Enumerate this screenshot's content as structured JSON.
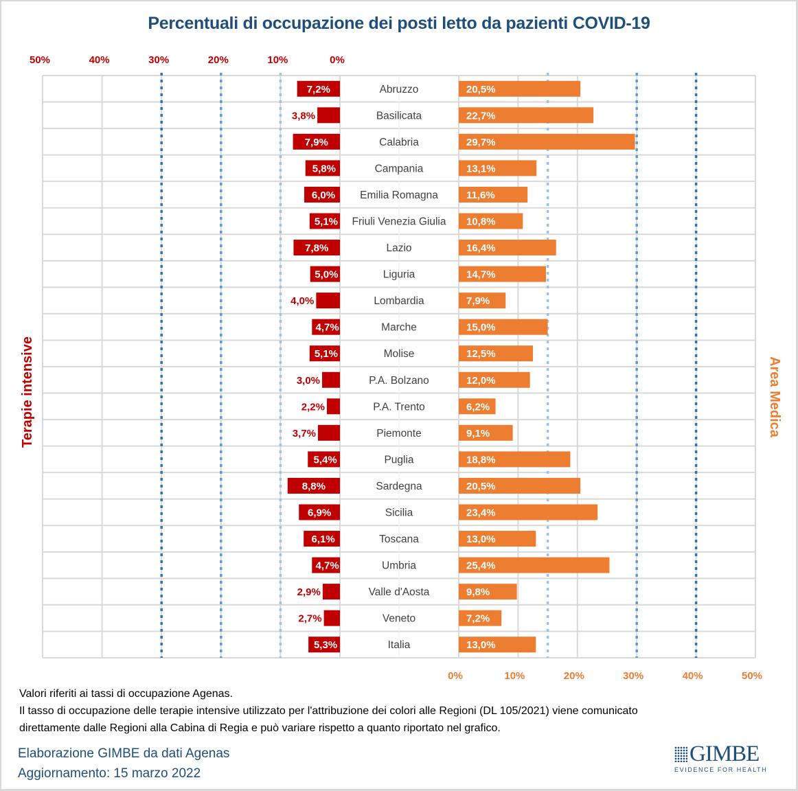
{
  "title": "Percentuali di occupazione dei posti letto da pazienti COVID-19",
  "left_axis_label": "Terapie intensive",
  "right_axis_label": "Area Medica",
  "notes": [
    "Valori riferiti ai tassi di occupazione Agenas.",
    "Il tasso di occupazione delle terapie intensive utilizzato per l'attribuzione dei colori alle Regioni (DL 105/2021) viene comunicato",
    "direttamente dalle Regioni alla Cabina di Regia e può variare rispetto a quanto riportato nel grafico."
  ],
  "credits": {
    "source": "Elaborazione GIMBE da dati Agenas",
    "update": "Aggiornamento: 15 marzo 2022"
  },
  "logo": {
    "name": "GIMBE",
    "tagline": "EVIDENCE FOR HEALTH",
    "icon": "grid-checkmark-icon"
  },
  "colors": {
    "title": "#1f4e79",
    "terapie_intensive": "#c00000",
    "area_medica": "#ed7d31",
    "threshold_low": "#9dc3e6",
    "threshold_mid": "#5b9bd5",
    "threshold_high": "#2e75b6",
    "gridline": "#d9d9d9"
  },
  "chart_data": {
    "type": "bar",
    "orientation": "horizontal-butterfly",
    "title": "Percentuali di occupazione dei posti letto da pazienti COVID-19",
    "categories": [
      "Abruzzo",
      "Basilicata",
      "Calabria",
      "Campania",
      "Emilia Romagna",
      "Friuli Venezia Giulia",
      "Lazio",
      "Liguria",
      "Lombardia",
      "Marche",
      "Molise",
      "P.A. Bolzano",
      "P.A. Trento",
      "Piemonte",
      "Puglia",
      "Sardegna",
      "Sicilia",
      "Toscana",
      "Umbria",
      "Valle d'Aosta",
      "Veneto",
      "Italia"
    ],
    "series": [
      {
        "name": "Terapie intensive",
        "side": "left",
        "color": "#c00000",
        "values": [
          7.2,
          3.8,
          7.9,
          5.8,
          6.0,
          5.1,
          7.8,
          5.0,
          4.0,
          4.7,
          5.1,
          3.0,
          2.2,
          3.7,
          5.4,
          8.8,
          6.9,
          6.1,
          4.7,
          2.9,
          2.7,
          5.3
        ],
        "labels": [
          "7,2%",
          "3,8%",
          "7,9%",
          "5,8%",
          "6,0%",
          "5,1%",
          "7,8%",
          "5,0%",
          "4,0%",
          "4,7%",
          "5,1%",
          "3,0%",
          "2,2%",
          "3,7%",
          "5,4%",
          "8,8%",
          "6,9%",
          "6,1%",
          "4,7%",
          "2,9%",
          "2,7%",
          "5,3%"
        ]
      },
      {
        "name": "Area Medica",
        "side": "right",
        "color": "#ed7d31",
        "values": [
          20.5,
          22.7,
          29.7,
          13.1,
          11.6,
          10.8,
          16.4,
          14.7,
          7.9,
          15.0,
          12.5,
          12.0,
          6.2,
          9.1,
          18.8,
          20.5,
          23.4,
          13.0,
          25.4,
          9.8,
          7.2,
          13.0
        ],
        "labels": [
          "20,5%",
          "22,7%",
          "29,7%",
          "13,1%",
          "11,6%",
          "10,8%",
          "16,4%",
          "14,7%",
          "7,9%",
          "15,0%",
          "12,5%",
          "12,0%",
          "6,2%",
          "9,1%",
          "18,8%",
          "20,5%",
          "23,4%",
          "13,0%",
          "25,4%",
          "9,8%",
          "7,2%",
          "13,0%"
        ]
      }
    ],
    "left_axis": {
      "range": [
        0,
        50
      ],
      "ticks": [
        "50%",
        "40%",
        "30%",
        "20%",
        "10%",
        "0%"
      ],
      "tick_values": [
        50,
        40,
        30,
        20,
        10,
        0
      ],
      "position": "top",
      "reversed": true
    },
    "right_axis": {
      "range": [
        0,
        50
      ],
      "ticks": [
        "0%",
        "10%",
        "20%",
        "30%",
        "40%",
        "50%"
      ],
      "tick_values": [
        0,
        10,
        20,
        30,
        40,
        50
      ],
      "position": "bottom"
    },
    "thresholds": {
      "left": [
        {
          "value": 10,
          "level": "low"
        },
        {
          "value": 20,
          "level": "mid"
        },
        {
          "value": 30,
          "level": "high"
        }
      ],
      "right": [
        {
          "value": 15,
          "level": "low"
        },
        {
          "value": 30,
          "level": "mid"
        },
        {
          "value": 40,
          "level": "high"
        }
      ]
    },
    "grid": true,
    "legend": "none"
  }
}
